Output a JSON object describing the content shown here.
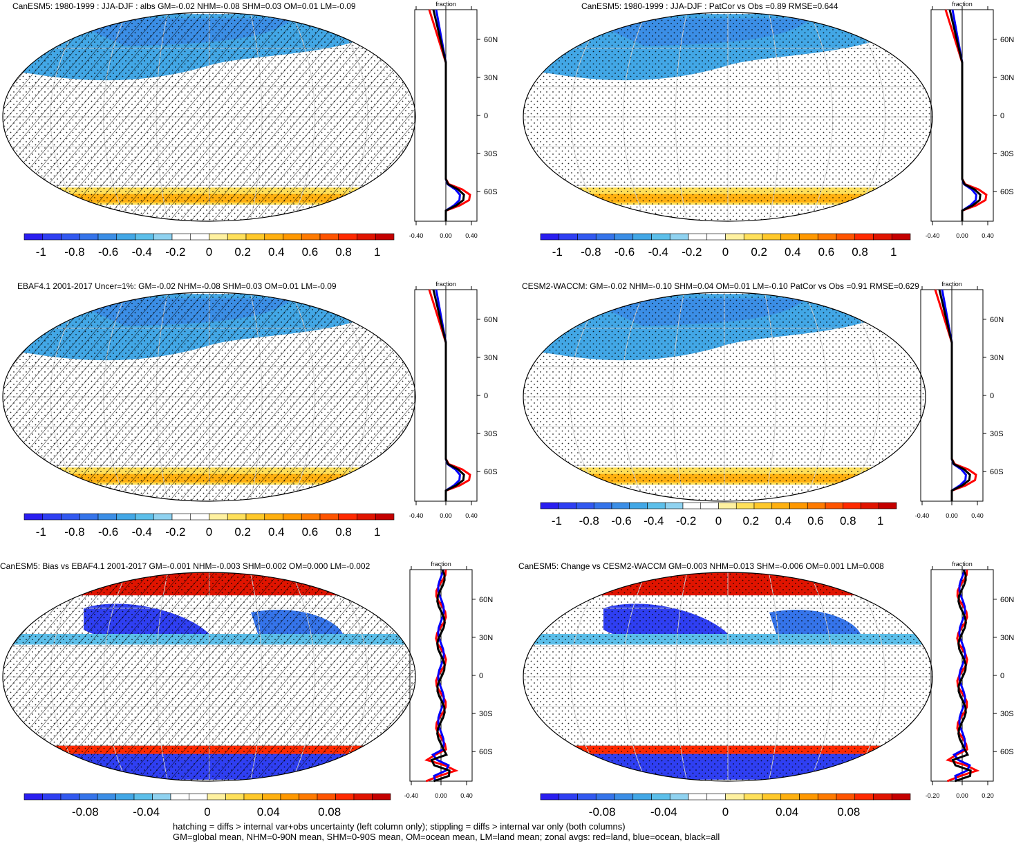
{
  "panels": [
    {
      "id": "p1",
      "title": "CanESM5: 1980-1999 : JJA-DJF : albs GM=-0.02 NHM=-0.08 SHM=0.03 OM=0.01 LM=-0.09",
      "variant": "mean",
      "hatch": true,
      "zonal_ticks": [
        "-0.40",
        "0.00",
        "0.40"
      ],
      "cbar_ticks": [
        "-1",
        "-0.8",
        "-0.6",
        "-0.4",
        "-0.2",
        "0",
        "0.2",
        "0.4",
        "0.6",
        "0.8",
        "1"
      ]
    },
    {
      "id": "p2",
      "title": "CanESM5: 1980-1999 : JJA-DJF : PatCor vs Obs =0.89 RMSE=0.644",
      "variant": "mean",
      "hatch": false,
      "zonal_ticks": [
        "-0.40",
        "0.00",
        "0.40"
      ],
      "cbar_ticks": [
        "-1",
        "-0.8",
        "-0.6",
        "-0.4",
        "-0.2",
        "0",
        "0.2",
        "0.4",
        "0.6",
        "0.8",
        "1"
      ]
    },
    {
      "id": "p3",
      "title": "EBAF4.1 2001-2017 Uncer=1%: GM=-0.02 NHM=-0.08 SHM=0.03 OM=0.01 LM=-0.09",
      "variant": "mean",
      "hatch": true,
      "zonal_ticks": [
        "-0.40",
        "0.00",
        "0.40"
      ],
      "cbar_ticks": [
        "-1",
        "-0.8",
        "-0.6",
        "-0.4",
        "-0.2",
        "0",
        "0.2",
        "0.4",
        "0.6",
        "0.8",
        "1"
      ]
    },
    {
      "id": "p4",
      "title": "CESM2-WACCM: GM=-0.02 NHM=-0.10 SHM=0.04 OM=0.01 LM=-0.10 PatCor vs Obs =0.91 RMSE=0.629",
      "variant": "mean",
      "hatch": false,
      "zonal_ticks": [
        "-0.40",
        "0.00",
        "0.40"
      ],
      "cbar_ticks": [
        "-1",
        "-0.8",
        "-0.6",
        "-0.4",
        "-0.2",
        "0",
        "0.2",
        "0.4",
        "0.6",
        "0.8",
        "1"
      ]
    },
    {
      "id": "p5",
      "title": "CanESM5: Bias vs EBAF4.1 2001-2017 GM=-0.001 NHM=-0.003 SHM=0.002 OM=0.000 LM=-0.002",
      "variant": "diff",
      "hatch": true,
      "zonal_ticks": [
        "-0.40",
        "0.00",
        "0.40"
      ],
      "cbar_ticks": [
        "-0.08",
        "-0.04",
        "0",
        "0.04",
        "0.08"
      ]
    },
    {
      "id": "p6",
      "title": "CanESM5: Change vs CESM2-WACCM GM=0.003 NHM=0.013 SHM=-0.006 OM=0.001 LM=0.008",
      "variant": "diff",
      "hatch": false,
      "zonal_ticks": [
        "-0.20",
        "0.00",
        "0.20"
      ],
      "cbar_ticks": [
        "-0.08",
        "-0.04",
        "0",
        "0.04",
        "0.08"
      ]
    }
  ],
  "zonal_label": "fraction",
  "lat_labels": [
    "60N",
    "30N",
    "0",
    "30S",
    "60S"
  ],
  "colors": {
    "scale": [
      "#2a1ef0",
      "#2f3ff2",
      "#3259f0",
      "#3574ea",
      "#3b8ee6",
      "#42a7e6",
      "#5cbfea",
      "#8fd2f0",
      "#ffffff",
      "#ffffff",
      "#fff1a0",
      "#ffe05a",
      "#ffc82a",
      "#ffb010",
      "#ff9800",
      "#ff7a00",
      "#ff5400",
      "#ff2a00",
      "#e01400",
      "#c40000"
    ],
    "land": "#ff0000",
    "ocean": "#0000ff",
    "all": "#000000"
  },
  "footer": [
    "hatching = diffs > internal var+obs uncertainty (left column only); stippling = diffs > internal var only (both columns)",
    "GM=global mean, NHM=0-90N mean, SHM=0-90S mean, OM=ocean mean, LM=land mean; zonal avgs: red=land, blue=ocean, black=all"
  ]
}
